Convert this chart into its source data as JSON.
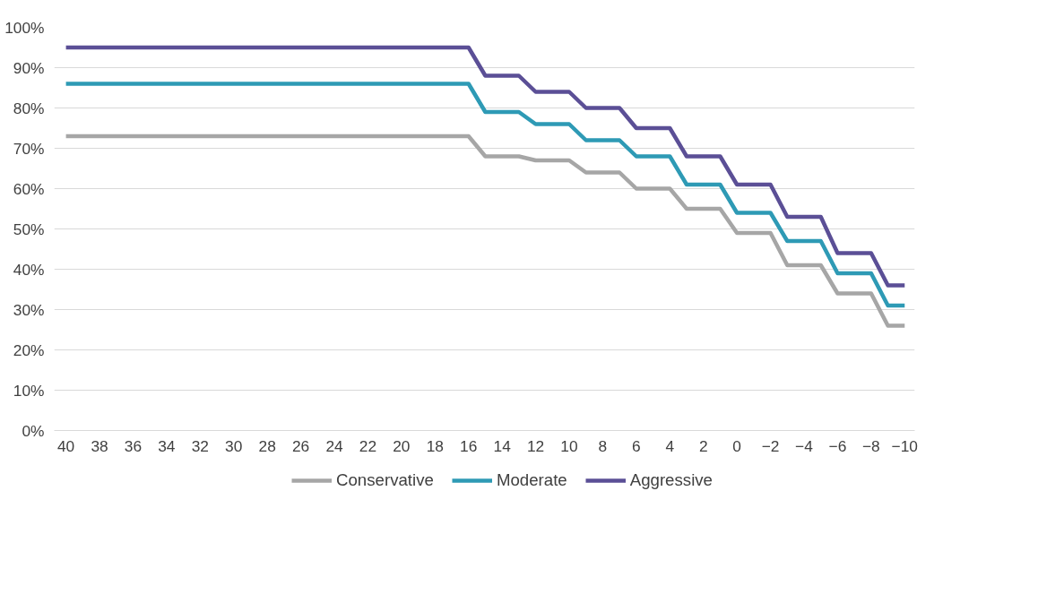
{
  "chart_data": {
    "type": "line",
    "x": [
      40,
      16,
      15,
      13,
      12,
      10,
      9,
      7,
      6,
      4,
      3,
      1,
      0,
      -2,
      -3,
      -5,
      -6,
      -8,
      -9,
      -10
    ],
    "series": [
      {
        "name": "Conservative",
        "color": "#a6a6a6",
        "values": [
          73,
          73,
          68,
          68,
          67,
          67,
          64,
          64,
          60,
          60,
          55,
          55,
          49,
          49,
          41,
          41,
          34,
          34,
          26,
          26
        ]
      },
      {
        "name": "Moderate",
        "color": "#2e9ab5",
        "values": [
          86,
          86,
          79,
          79,
          76,
          76,
          72,
          72,
          68,
          68,
          61,
          61,
          54,
          54,
          47,
          47,
          39,
          39,
          31,
          31
        ]
      },
      {
        "name": "Aggressive",
        "color": "#5b4f96",
        "values": [
          95,
          95,
          88,
          88,
          84,
          84,
          80,
          80,
          75,
          75,
          68,
          68,
          61,
          61,
          53,
          53,
          44,
          44,
          36,
          36
        ]
      }
    ],
    "xlim": [
      40.7,
      -10.6
    ],
    "xticks": [
      40,
      38,
      36,
      34,
      32,
      30,
      28,
      26,
      24,
      22,
      20,
      18,
      16,
      14,
      12,
      10,
      8,
      6,
      4,
      2,
      0,
      -2,
      -4,
      -6,
      -8,
      -10
    ],
    "ylim": [
      0,
      100
    ],
    "yticks": [
      {
        "value": 0,
        "label": "0%"
      },
      {
        "value": 10,
        "label": "10%"
      },
      {
        "value": 20,
        "label": "20%"
      },
      {
        "value": 30,
        "label": "30%"
      },
      {
        "value": 40,
        "label": "40%"
      },
      {
        "value": 50,
        "label": "50%"
      },
      {
        "value": 60,
        "label": "60%"
      },
      {
        "value": 70,
        "label": "70%"
      },
      {
        "value": 80,
        "label": "80%"
      },
      {
        "value": 90,
        "label": "90%"
      },
      {
        "value": 100,
        "label": "100%"
      }
    ],
    "grid": "y",
    "legend": "bottom",
    "marker": "none",
    "line_style": "solid"
  }
}
